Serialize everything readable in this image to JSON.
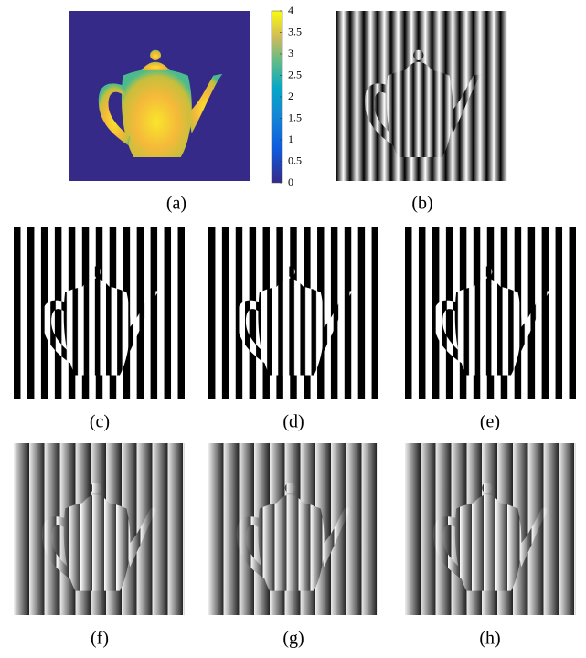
{
  "colorbar": {
    "lim": [
      0,
      4
    ],
    "ticks": [
      0,
      0.5,
      1,
      1.5,
      2,
      2.5,
      3,
      3.5,
      4
    ]
  },
  "panels": [
    {
      "caption": "(a)"
    },
    {
      "caption": "(b)"
    },
    {
      "caption": "(c)"
    },
    {
      "caption": "(d)"
    },
    {
      "caption": "(e)"
    },
    {
      "caption": "(f)"
    },
    {
      "caption": "(g)"
    },
    {
      "caption": "(h)"
    }
  ]
}
